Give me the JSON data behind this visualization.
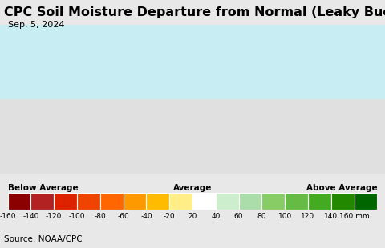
{
  "title": "CPC Soil Moisture Departure from Normal (Leaky Bucket)",
  "date": "Sep. 5, 2024",
  "source": "Source: NOAA/CPC",
  "label_below": "Below Average",
  "label_avg": "Average",
  "label_above": "Above Average",
  "colors": [
    "#8B0000",
    "#B22222",
    "#DD2200",
    "#EE4400",
    "#FF6600",
    "#FF9900",
    "#FFBB00",
    "#FFEE88",
    "#FFFFFF",
    "#CCEECC",
    "#AADDAA",
    "#88CC66",
    "#66BB44",
    "#44AA22",
    "#228800",
    "#006600"
  ],
  "tick_labels": [
    "-160",
    "-140",
    "-120",
    "-100",
    "-80",
    "-60",
    "-40",
    "-20",
    "20",
    "40",
    "60",
    "80",
    "100",
    "120",
    "140",
    "160 mm"
  ],
  "bg_color": "#e8e8e8",
  "map_bg_top": "#c8eef4",
  "map_bg_main": "#e0e0e0",
  "title_fontsize": 11.5,
  "date_fontsize": 8,
  "label_fontsize": 7.5,
  "tick_fontsize": 6.5,
  "source_fontsize": 7.5,
  "fig_width": 4.8,
  "fig_height": 3.1,
  "dpi": 100
}
